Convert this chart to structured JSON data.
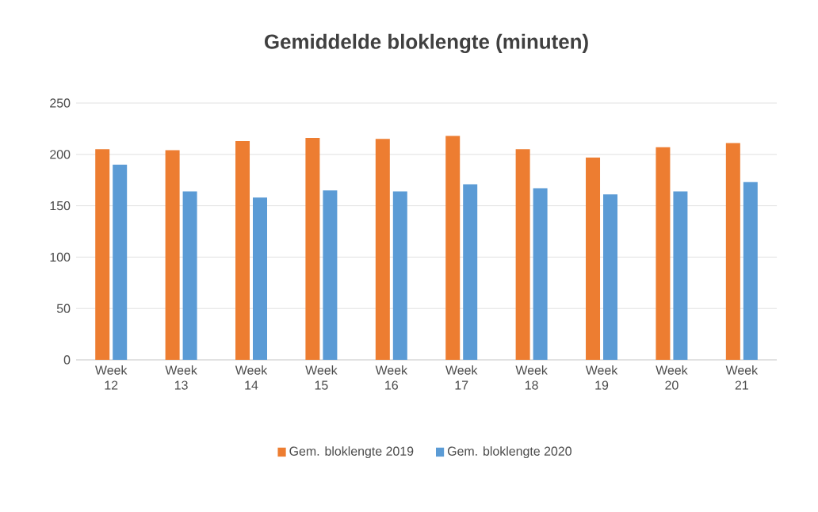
{
  "chart_data": {
    "type": "bar",
    "title": "Gemiddelde bloklengte (minuten)",
    "categories": [
      "Week 12",
      "Week 13",
      "Week 14",
      "Week 15",
      "Week 16",
      "Week 17",
      "Week 18",
      "Week 19",
      "Week 20",
      "Week 21"
    ],
    "series": [
      {
        "name": "Gem. bloklengte 2019",
        "color": "#ed7d31",
        "values": [
          205,
          204,
          213,
          216,
          215,
          218,
          205,
          197,
          207,
          211
        ]
      },
      {
        "name": "Gem. bloklengte 2020",
        "color": "#5b9bd5",
        "values": [
          190,
          164,
          158,
          165,
          164,
          171,
          167,
          161,
          164,
          173
        ]
      }
    ],
    "ylim": [
      0,
      250
    ],
    "yticks": [
      0,
      50,
      100,
      150,
      200,
      250
    ],
    "grid": "y",
    "legend": "bottom"
  }
}
